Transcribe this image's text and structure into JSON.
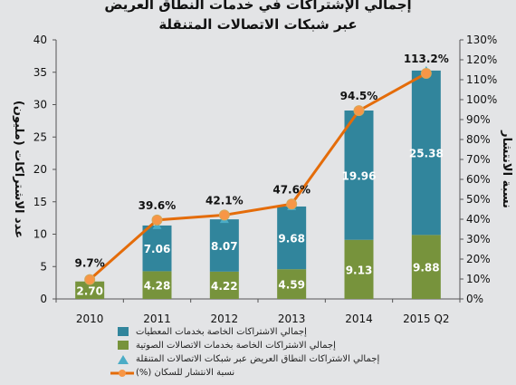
{
  "title": "إجمالي الإشتراكات في خدمات النطاق العريض عبر شبكات الاتصالات المتنقلة",
  "chart_data": {
    "type": "bar",
    "stacked": true,
    "categories": [
      "2010",
      "2011",
      "2012",
      "2013",
      "2014",
      "2015 Q2"
    ],
    "series": [
      {
        "name": "إجمالي الاشتراكات الخاصة بخدمات الاتصالات الصوتية",
        "values": [
          2.7,
          4.28,
          4.22,
          4.59,
          9.13,
          9.88
        ],
        "labels": [
          "2.70",
          "4.28",
          "4.22",
          "4.59",
          "9.13",
          "9.88"
        ],
        "color": "#77933c"
      },
      {
        "name": "إجمالي الاشتراكات الخاصة بخدمات المعطيات",
        "values": [
          null,
          7.06,
          8.07,
          9.68,
          19.96,
          25.38
        ],
        "labels": [
          "",
          "7.06",
          "8.07",
          "9.68",
          "19.96",
          "25.38"
        ],
        "color": "#31859c"
      }
    ],
    "total_series": {
      "name": "إجمالي الاشتراكات النطاق العريض عبر شبكات الاتصالات المتنقلة",
      "values": [
        2.7,
        11.34,
        12.29,
        14.27,
        29.09,
        35.26
      ],
      "color": "#4bacc6"
    },
    "line_series": {
      "name": "نسبة الانتشار للسكان (%)",
      "values": [
        9.7,
        39.6,
        42.1,
        47.6,
        94.5,
        113.2
      ],
      "labels": [
        "9.7%",
        "39.6%",
        "42.1%",
        "47.6%",
        "94.5%",
        "113.2%"
      ],
      "color": "#e46c0a",
      "marker_color": "#f79646"
    },
    "ylabel": "عدد الاشتراكات (مليون)",
    "y2label": "نسبة الانتشار",
    "ylim": [
      0,
      40
    ],
    "yticks": [
      "0",
      "5",
      "10",
      "15",
      "20",
      "25",
      "30",
      "35",
      "40"
    ],
    "y2lim": [
      0,
      130
    ],
    "y2ticks": [
      "0%",
      "10%",
      "20%",
      "30%",
      "40%",
      "50%",
      "60%",
      "70%",
      "80%",
      "90%",
      "100%",
      "110%",
      "120%",
      "130%"
    ],
    "grid": false,
    "legend_position": "bottom"
  }
}
